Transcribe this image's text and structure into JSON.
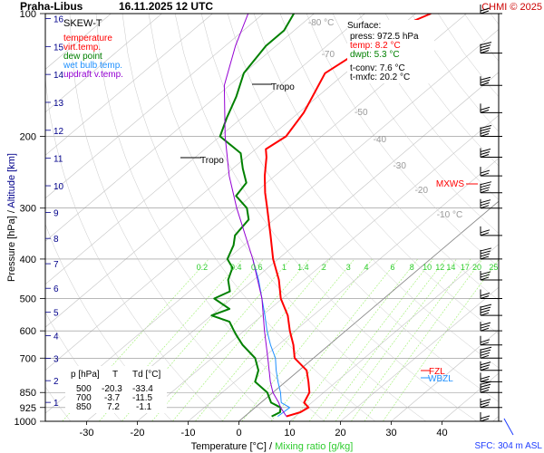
{
  "header": {
    "station": "Praha-Libus",
    "datetime": "16.11.2025 12 UTC",
    "credit": "CHMI © 2025"
  },
  "axes": {
    "xlabel_prefix": "Temperature [°C]",
    "xlabel_sep": "/",
    "xlabel_mix": "Mixing ratio [g/kg]",
    "ylabel_pressure": "Pressure [hPa]",
    "ylabel_sep": "/",
    "ylabel_alt": "Altitude [km]",
    "pressure_ticks": [
      "100",
      "200",
      "300",
      "400",
      "500",
      "600",
      "700",
      "850",
      "925",
      "1000"
    ],
    "temp_ticks": [
      "-30",
      "-20",
      "-10",
      "0",
      "10",
      "20",
      "30",
      "40"
    ],
    "alt_ticks": [
      "1",
      "2",
      "3",
      "4",
      "5",
      "6",
      "7",
      "8",
      "9",
      "10",
      "11",
      "12",
      "13",
      "14",
      "15",
      "16"
    ],
    "sfc_label": "SFC: 304 m ASL"
  },
  "legend": {
    "title": "SKEW-T",
    "items": [
      {
        "label": "temperature",
        "color": "#ff0000"
      },
      {
        "label": "virt.temp.",
        "color": "#ff0000"
      },
      {
        "label": "dew point",
        "color": "#008000"
      },
      {
        "label": "wet bulb temp.",
        "color": "#1e90ff"
      },
      {
        "label": "updraft v.temp.",
        "color": "#9400d3"
      }
    ]
  },
  "surface_box": {
    "title": "Surface:",
    "press": "press: 972.5 hPa",
    "temp": "temp: 8.2 °C",
    "dwpt": "dwpt: 5.3 °C",
    "tconv": "t-conv: 7.6 °C",
    "tmxfc": "t-mxfc: 20.2 °C"
  },
  "table": {
    "headers": [
      "p [hPa]",
      "T",
      "Td [°C]"
    ],
    "rows": [
      [
        "500",
        "-20.3",
        "-33.4"
      ],
      [
        "700",
        "-3.7",
        "-11.5"
      ],
      [
        "850",
        "7.2",
        "-1.1"
      ]
    ]
  },
  "annotations": {
    "tropo1": "Tropo",
    "tropo2": "Tropo",
    "mxws": "MXWS",
    "fzl": "FZL",
    "wbzl": "WBZL",
    "iso_labels": [
      "-80 °C",
      "-70",
      "-50",
      "-40",
      "-30",
      "-20",
      "-10 °C"
    ],
    "mix_labels": [
      "0.2",
      "0.4",
      "0.6",
      "1",
      "1.4",
      "2",
      "3",
      "4",
      "6",
      "8",
      "10",
      "12",
      "14",
      "17",
      "20",
      "25"
    ]
  },
  "colors": {
    "temperature": "#ff0000",
    "dewpoint": "#008000",
    "wetbulb": "#1e90ff",
    "parcel": "#9400d3",
    "grid": "#b0b0b0",
    "mixing": "#7cfc00",
    "altitude": "#00008b",
    "credit": "#cc0000"
  },
  "chart_data": {
    "type": "line",
    "title": "SKEW-T",
    "xlabel": "Temperature [°C] / Mixing ratio [g/kg]",
    "ylabel": "Pressure [hPa] / Altitude [km]",
    "pressure_range_hpa": [
      1000,
      100
    ],
    "temperature_range_c": [
      -35,
      45
    ],
    "y_scale": "log",
    "series": [
      {
        "name": "temperature",
        "points": [
          [
            972.5,
            8.2
          ],
          [
            950,
            10
          ],
          [
            925,
            10.5
          ],
          [
            900,
            8.5
          ],
          [
            850,
            7.2
          ],
          [
            800,
            4.5
          ],
          [
            750,
            1.5
          ],
          [
            700,
            -3.7
          ],
          [
            650,
            -7
          ],
          [
            600,
            -11
          ],
          [
            550,
            -15
          ],
          [
            500,
            -20.3
          ],
          [
            450,
            -25
          ],
          [
            400,
            -31
          ],
          [
            350,
            -37
          ],
          [
            300,
            -44
          ],
          [
            275,
            -48
          ],
          [
            250,
            -52
          ],
          [
            225,
            -56
          ],
          [
            215,
            -58
          ],
          [
            200,
            -57
          ],
          [
            175,
            -59
          ],
          [
            160,
            -61
          ],
          [
            140,
            -64
          ],
          [
            130,
            -63
          ],
          [
            120,
            -62
          ],
          [
            110,
            -60
          ],
          [
            105,
            -59
          ],
          [
            100,
            -57
          ]
        ]
      },
      {
        "name": "dew point",
        "points": [
          [
            972.5,
            5.3
          ],
          [
            950,
            6
          ],
          [
            925,
            5
          ],
          [
            900,
            2
          ],
          [
            850,
            -1.1
          ],
          [
            800,
            -6
          ],
          [
            750,
            -8
          ],
          [
            700,
            -11.5
          ],
          [
            650,
            -17
          ],
          [
            620,
            -20
          ],
          [
            600,
            -22
          ],
          [
            570,
            -25
          ],
          [
            550,
            -30
          ],
          [
            530,
            -28
          ],
          [
            500,
            -33.4
          ],
          [
            480,
            -32
          ],
          [
            450,
            -35
          ],
          [
            420,
            -37
          ],
          [
            400,
            -40
          ],
          [
            370,
            -42
          ],
          [
            350,
            -44
          ],
          [
            320,
            -45
          ],
          [
            300,
            -48
          ],
          [
            280,
            -53
          ],
          [
            260,
            -54
          ],
          [
            240,
            -58
          ],
          [
            220,
            -62
          ],
          [
            200,
            -70
          ],
          [
            180,
            -73
          ],
          [
            160,
            -76
          ],
          [
            140,
            -80
          ],
          [
            120,
            -82
          ],
          [
            110,
            -82
          ],
          [
            100,
            -84
          ]
        ]
      },
      {
        "name": "wet bulb temp.",
        "points": [
          [
            972.5,
            6.5
          ],
          [
            925,
            6.8
          ],
          [
            900,
            4
          ],
          [
            850,
            1.5
          ],
          [
            800,
            -1.5
          ],
          [
            750,
            -4.5
          ],
          [
            700,
            -7.5
          ],
          [
            650,
            -11.5
          ],
          [
            600,
            -15.5
          ],
          [
            550,
            -19.5
          ],
          [
            500,
            -24
          ],
          [
            450,
            -29
          ],
          [
            400,
            -35
          ]
        ]
      },
      {
        "name": "updraft v.temp.",
        "points": [
          [
            972.5,
            8.2
          ],
          [
            925,
            5
          ],
          [
            900,
            3.5
          ],
          [
            850,
            0
          ],
          [
            800,
            -3
          ],
          [
            700,
            -9
          ],
          [
            600,
            -16
          ],
          [
            500,
            -24
          ],
          [
            400,
            -35
          ],
          [
            300,
            -50
          ],
          [
            250,
            -59
          ],
          [
            200,
            -69
          ],
          [
            150,
            -81
          ],
          [
            120,
            -88
          ],
          [
            100,
            -93
          ]
        ]
      }
    ],
    "tropopause_hpa": [
      220,
      140
    ],
    "wind_barbs_hpa": [
      1000,
      925,
      850,
      800,
      750,
      700,
      650,
      600,
      550,
      500,
      450,
      400,
      350,
      300,
      275,
      250,
      225,
      200,
      175,
      150,
      125,
      100
    ]
  }
}
